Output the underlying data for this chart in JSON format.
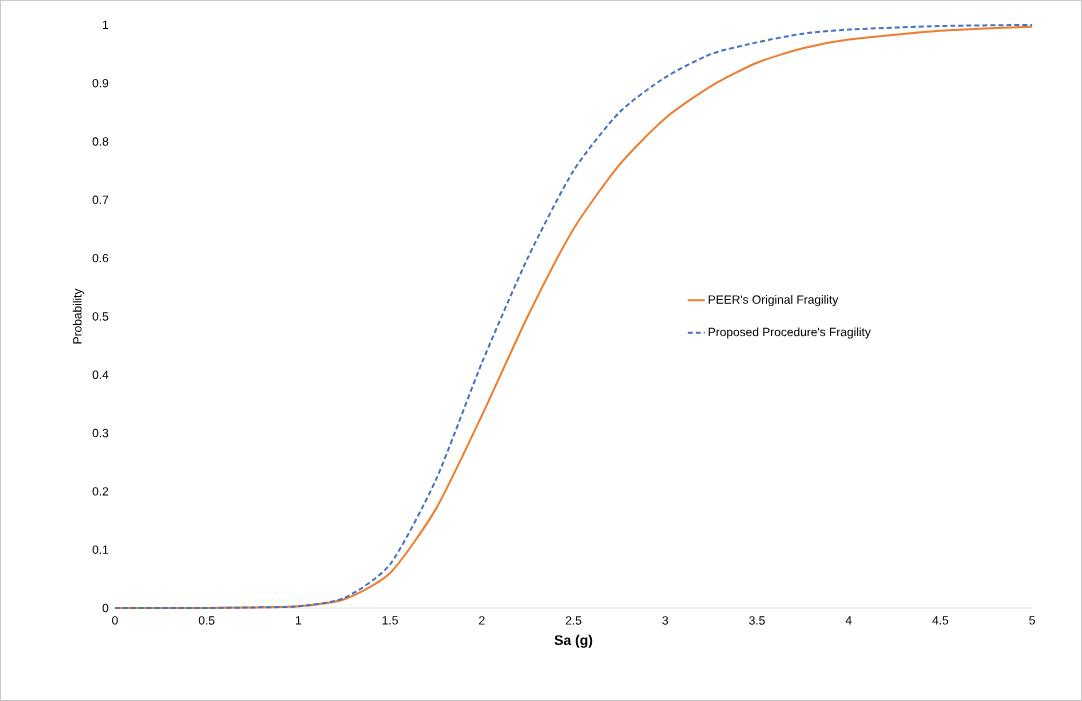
{
  "chart_data": {
    "type": "line",
    "xlabel": "Sa (g)",
    "ylabel": "Probability",
    "xlim": [
      0,
      5
    ],
    "ylim": [
      0,
      1
    ],
    "xticks": [
      0,
      0.5,
      1,
      1.5,
      2,
      2.5,
      3,
      3.5,
      4,
      4.5,
      5
    ],
    "yticks": [
      0,
      0.1,
      0.2,
      0.3,
      0.4,
      0.5,
      0.6,
      0.7,
      0.8,
      0.9,
      1
    ],
    "x": [
      0,
      0.5,
      0.75,
      1,
      1.25,
      1.5,
      1.75,
      2,
      2.25,
      2.5,
      2.75,
      3,
      3.25,
      3.5,
      3.75,
      4,
      4.5,
      5
    ],
    "series": [
      {
        "name": "PEER's Original Fragility",
        "color": "#ed7d31",
        "line_style": "solid",
        "values": [
          0,
          0,
          0.001,
          0.003,
          0.015,
          0.06,
          0.17,
          0.33,
          0.5,
          0.65,
          0.76,
          0.84,
          0.895,
          0.935,
          0.96,
          0.975,
          0.99,
          0.997
        ]
      },
      {
        "name": "Proposed Procedure's Fragility",
        "color": "#4472c4",
        "line_style": "dashed",
        "values": [
          0,
          0,
          0.001,
          0.003,
          0.017,
          0.075,
          0.22,
          0.42,
          0.6,
          0.75,
          0.85,
          0.91,
          0.95,
          0.97,
          0.985,
          0.992,
          0.998,
          1
        ]
      }
    ],
    "grid": false,
    "legend": "right",
    "marker": "none"
  }
}
